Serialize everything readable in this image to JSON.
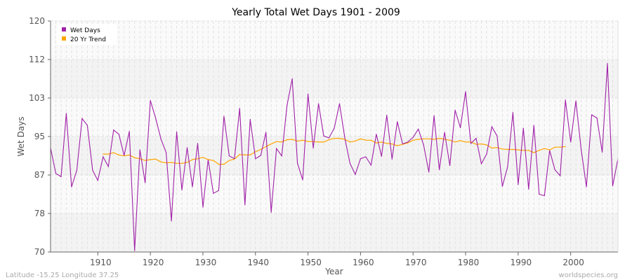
{
  "chart_data": {
    "type": "line",
    "title": "Yearly Total Wet Days 1901 - 2009",
    "xlabel": "Year",
    "ylabel": "Wet Days",
    "xlim": [
      1901,
      2009
    ],
    "ylim": [
      70,
      120
    ],
    "y_tick_labels": [
      "70",
      "78",
      "87",
      "95",
      "103",
      "112",
      "120"
    ],
    "x_ticks": [
      1910,
      1920,
      1930,
      1940,
      1950,
      1960,
      1970,
      1980,
      1990,
      2000
    ],
    "grid": true,
    "legend_position": "top-left",
    "series": [
      {
        "name": "Wet Days",
        "color": "#a020a8",
        "start_year": 1901,
        "values": [
          92.5,
          87.0,
          86.3,
          100.0,
          84.1,
          87.7,
          98.9,
          97.4,
          87.7,
          85.5,
          90.6,
          88.5,
          96.4,
          95.5,
          90.9,
          96.1,
          70.3,
          92.1,
          85.0,
          102.8,
          99.0,
          94.5,
          91.5,
          76.7,
          96.0,
          83.4,
          92.6,
          84.1,
          93.5,
          79.7,
          90.0,
          82.7,
          83.3,
          99.4,
          90.8,
          90.2,
          101.1,
          80.2,
          98.7,
          90.2,
          90.9,
          95.9,
          78.6,
          92.4,
          90.8,
          101.7,
          107.5,
          89.2,
          85.6,
          104.2,
          92.5,
          102.1,
          95.1,
          94.7,
          96.8,
          102.1,
          94.7,
          89.2,
          86.8,
          90.2,
          90.6,
          88.8,
          95.5,
          90.7,
          99.6,
          90.1,
          98.2,
          93.4,
          93.8,
          94.8,
          96.6,
          93.2,
          87.3,
          99.5,
          87.8,
          95.9,
          88.7,
          100.7,
          96.9,
          104.7,
          93.5,
          94.6,
          89.1,
          91.2,
          97.1,
          95.1,
          84.2,
          88.5,
          100.2,
          84.6,
          96.8,
          83.6,
          97.4,
          82.5,
          82.2,
          92.0,
          87.8,
          86.5,
          102.9,
          93.8,
          102.7,
          92.2,
          84.1,
          99.7,
          99.0,
          91.6,
          110.8,
          84.3,
          90.2
        ]
      },
      {
        "name": "20 Yr Trend",
        "color": "#ffa500",
        "start_year": 1911,
        "values": [
          91.2,
          91.2,
          91.5,
          91.0,
          90.8,
          91.0,
          90.4,
          90.2,
          89.8,
          90.0,
          90.1,
          89.5,
          89.3,
          89.4,
          89.2,
          89.2,
          89.4,
          90.0,
          90.2,
          90.5,
          90.0,
          89.8,
          89.0,
          89.0,
          89.8,
          90.1,
          91.1,
          91.0,
          91.0,
          91.7,
          92.2,
          92.8,
          93.4,
          93.9,
          93.8,
          94.3,
          94.4,
          94.0,
          94.2,
          93.9,
          93.9,
          93.8,
          93.8,
          94.3,
          94.6,
          94.6,
          94.4,
          93.8,
          94.0,
          94.5,
          94.2,
          94.2,
          93.6,
          93.8,
          93.5,
          93.4,
          93.0,
          93.3,
          93.6,
          94.2,
          94.4,
          94.5,
          94.5,
          94.4,
          94.6,
          94.4,
          94.2,
          93.8,
          94.1,
          93.8,
          93.8,
          93.3,
          93.4,
          93.2,
          92.5,
          92.6,
          92.3,
          92.2,
          92.2,
          92.1,
          92.0,
          92.0,
          91.5,
          92.0,
          92.4,
          92.1,
          92.7,
          92.7,
          92.8
        ]
      }
    ]
  },
  "footer": {
    "location": "Latitude -15.25 Longitude 37.25",
    "source": "worldspecies.org"
  }
}
